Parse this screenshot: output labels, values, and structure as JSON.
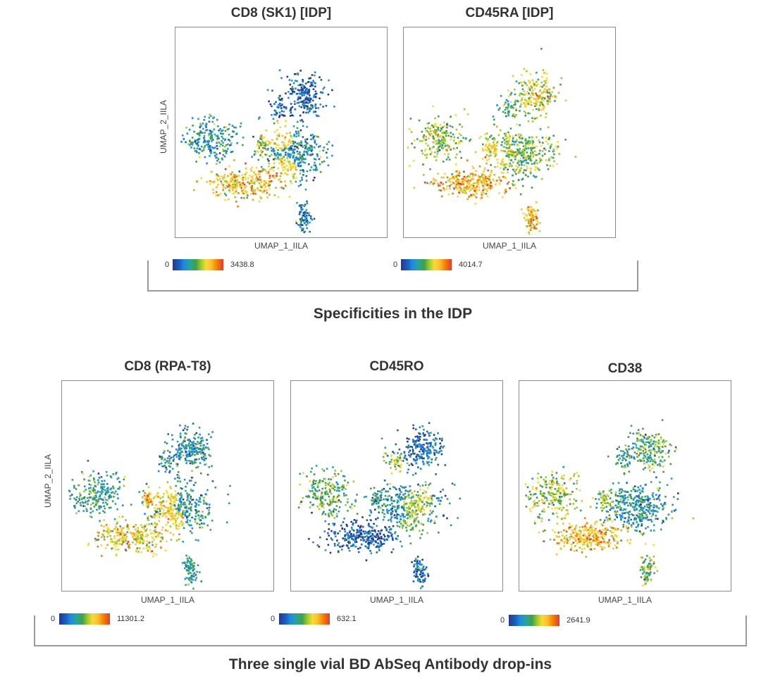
{
  "chart_data": [
    {
      "type": "scatter",
      "title": "CD8 (SK1) [IDP]",
      "xlabel": "UMAP_1_IILA",
      "ylabel": "UMAP_2_IILA",
      "colorbar": {
        "min": "0",
        "max": "3438.8"
      },
      "marker": "CD8_SK1",
      "group": "Specificities in the IDP"
    },
    {
      "type": "scatter",
      "title": "CD45RA [IDP]",
      "xlabel": "UMAP_1_IILA",
      "ylabel": "",
      "colorbar": {
        "min": "0",
        "max": "4014.7"
      },
      "marker": "CD45RA",
      "group": "Specificities in the IDP"
    },
    {
      "type": "scatter",
      "title": "CD8 (RPA-T8)",
      "xlabel": "UMAP_1_IILA",
      "ylabel": "UMAP_2_IILA",
      "colorbar": {
        "min": "0",
        "max": "11301.2"
      },
      "marker": "CD8_RPA",
      "group": "Three single vial BD AbSeq Antibody drop-ins"
    },
    {
      "type": "scatter",
      "title": "CD45RO",
      "xlabel": "UMAP_1_IILA",
      "ylabel": "",
      "colorbar": {
        "min": "0",
        "max": "632.1"
      },
      "marker": "CD45RO",
      "group": "Three single vial BD AbSeq Antibody drop-ins"
    },
    {
      "type": "scatter",
      "title": "CD38",
      "xlabel": "UMAP_1_IILA",
      "ylabel": "",
      "colorbar": {
        "min": "0",
        "max": "2641.9"
      },
      "marker": "CD38",
      "group": "Three single vial BD AbSeq Antibody drop-ins"
    }
  ],
  "captions": {
    "top": "Specificities in the IDP",
    "bottom": "Three single vial BD AbSeq Antibody drop-ins"
  },
  "palette": [
    "#283593",
    "#1565c0",
    "#1e88e5",
    "#26a69a",
    "#43a047",
    "#9ccc2a",
    "#fdd835",
    "#fbc02d",
    "#f57c00",
    "#e53935"
  ]
}
